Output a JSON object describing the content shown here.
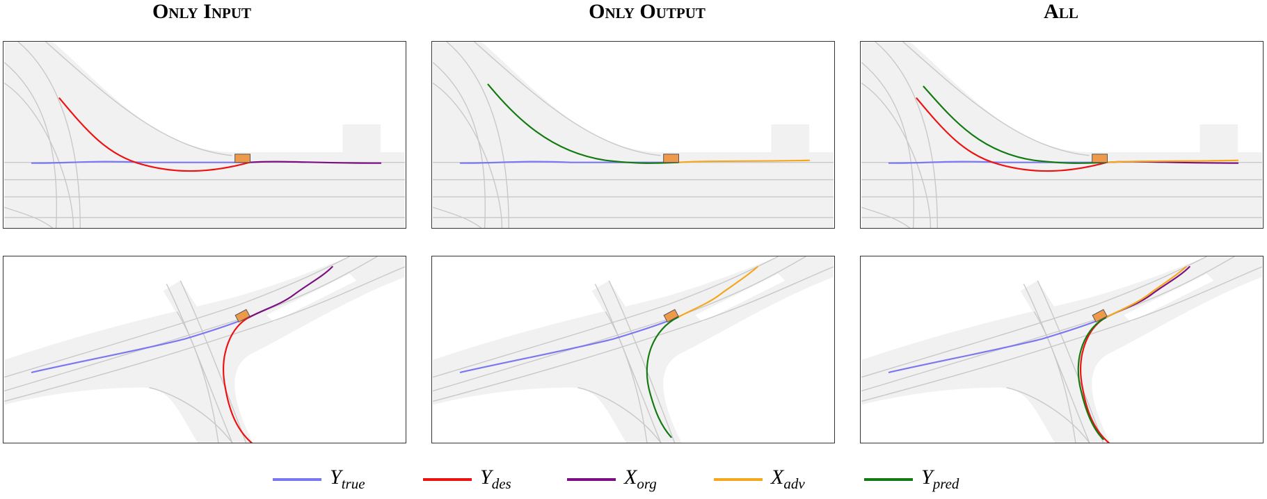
{
  "columns": [
    {
      "title": "Only Input"
    },
    {
      "title": "Only Output"
    },
    {
      "title": "All"
    }
  ],
  "colors": {
    "y_true": "#7a78f0",
    "y_des": "#ee1111",
    "x_org": "#7b0f82",
    "x_adv": "#f5a71e",
    "y_pred": "#137a11",
    "road": "#f1f1f1",
    "lane": "#c8c8c8",
    "vehicle": "#ee9a4a"
  },
  "legend": [
    {
      "base": "Y",
      "sub": "true",
      "color": "#7a78f0"
    },
    {
      "base": "Y",
      "sub": "des",
      "color": "#ee1111"
    },
    {
      "base": "X",
      "sub": "org",
      "color": "#7b0f82"
    },
    {
      "base": "X",
      "sub": "adv",
      "color": "#f5a71e"
    },
    {
      "base": "Y",
      "sub": "pred",
      "color": "#137a11"
    }
  ],
  "panels": [
    {
      "row": 0,
      "col": 0,
      "trajectories": [
        "y_true",
        "y_des",
        "x_org"
      ]
    },
    {
      "row": 0,
      "col": 1,
      "trajectories": [
        "y_true",
        "x_adv",
        "y_pred"
      ]
    },
    {
      "row": 0,
      "col": 2,
      "trajectories": [
        "y_true",
        "y_des",
        "x_org",
        "x_adv",
        "y_pred"
      ]
    },
    {
      "row": 1,
      "col": 0,
      "trajectories": [
        "y_true",
        "y_des",
        "x_org"
      ]
    },
    {
      "row": 1,
      "col": 1,
      "trajectories": [
        "y_true",
        "x_adv",
        "y_pred"
      ]
    },
    {
      "row": 1,
      "col": 2,
      "trajectories": [
        "y_true",
        "y_des",
        "x_org",
        "x_adv",
        "y_pred"
      ]
    }
  ]
}
